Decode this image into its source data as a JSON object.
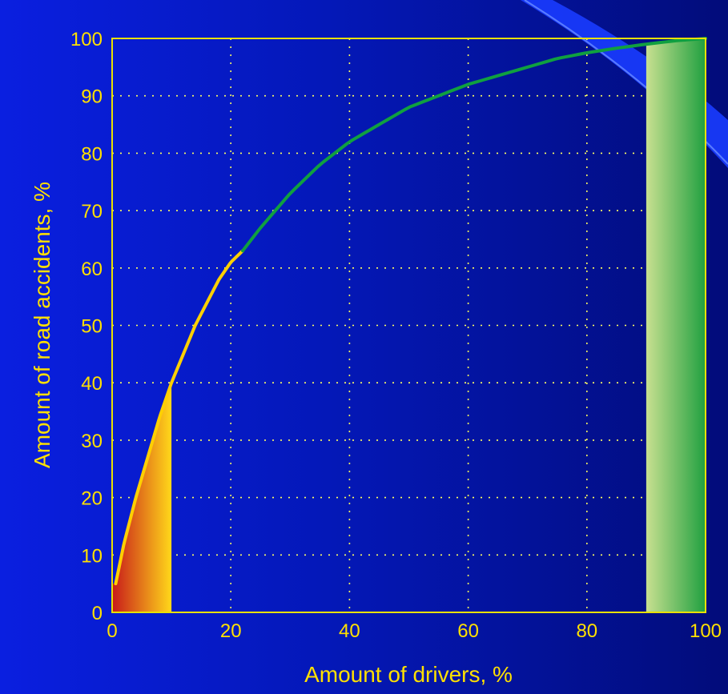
{
  "chart_data": {
    "type": "area",
    "title": "",
    "xlabel": "Amount of drivers, %",
    "ylabel": "Amount of road accidents, %",
    "xlim": [
      0,
      100
    ],
    "ylim": [
      0,
      100
    ],
    "x_ticks": [
      0,
      20,
      40,
      60,
      80,
      100
    ],
    "y_ticks": [
      0,
      10,
      20,
      30,
      40,
      50,
      60,
      70,
      80,
      90,
      100
    ],
    "grid": true,
    "legend": "none",
    "series": [
      {
        "x": [
          0.6,
          2,
          4,
          6,
          8,
          10,
          12,
          14,
          16,
          18,
          20,
          22,
          25,
          30,
          35,
          40,
          45,
          50,
          55,
          60,
          65,
          70,
          75,
          80,
          85,
          90,
          95,
          100
        ],
        "values": [
          5,
          12,
          20,
          27,
          34,
          40,
          45,
          50,
          54,
          58,
          61,
          63,
          67,
          73,
          78,
          82,
          85,
          88,
          90,
          92,
          93.5,
          95,
          96.5,
          97.5,
          98.3,
          99,
          99.6,
          100
        ]
      }
    ],
    "shaded_regions": [
      {
        "from": 0,
        "to": 10
      },
      {
        "from": 90,
        "to": 100
      }
    ],
    "colors": {
      "frame": "#e8e000",
      "grid": "#ffff60",
      "curve_low": "#ffd000",
      "curve_high": "#10a040",
      "left_fill_start": "#c81a1a",
      "left_fill_end": "#ffd81a",
      "right_fill_start": "#c8e090",
      "right_fill_end": "#20a040"
    }
  }
}
